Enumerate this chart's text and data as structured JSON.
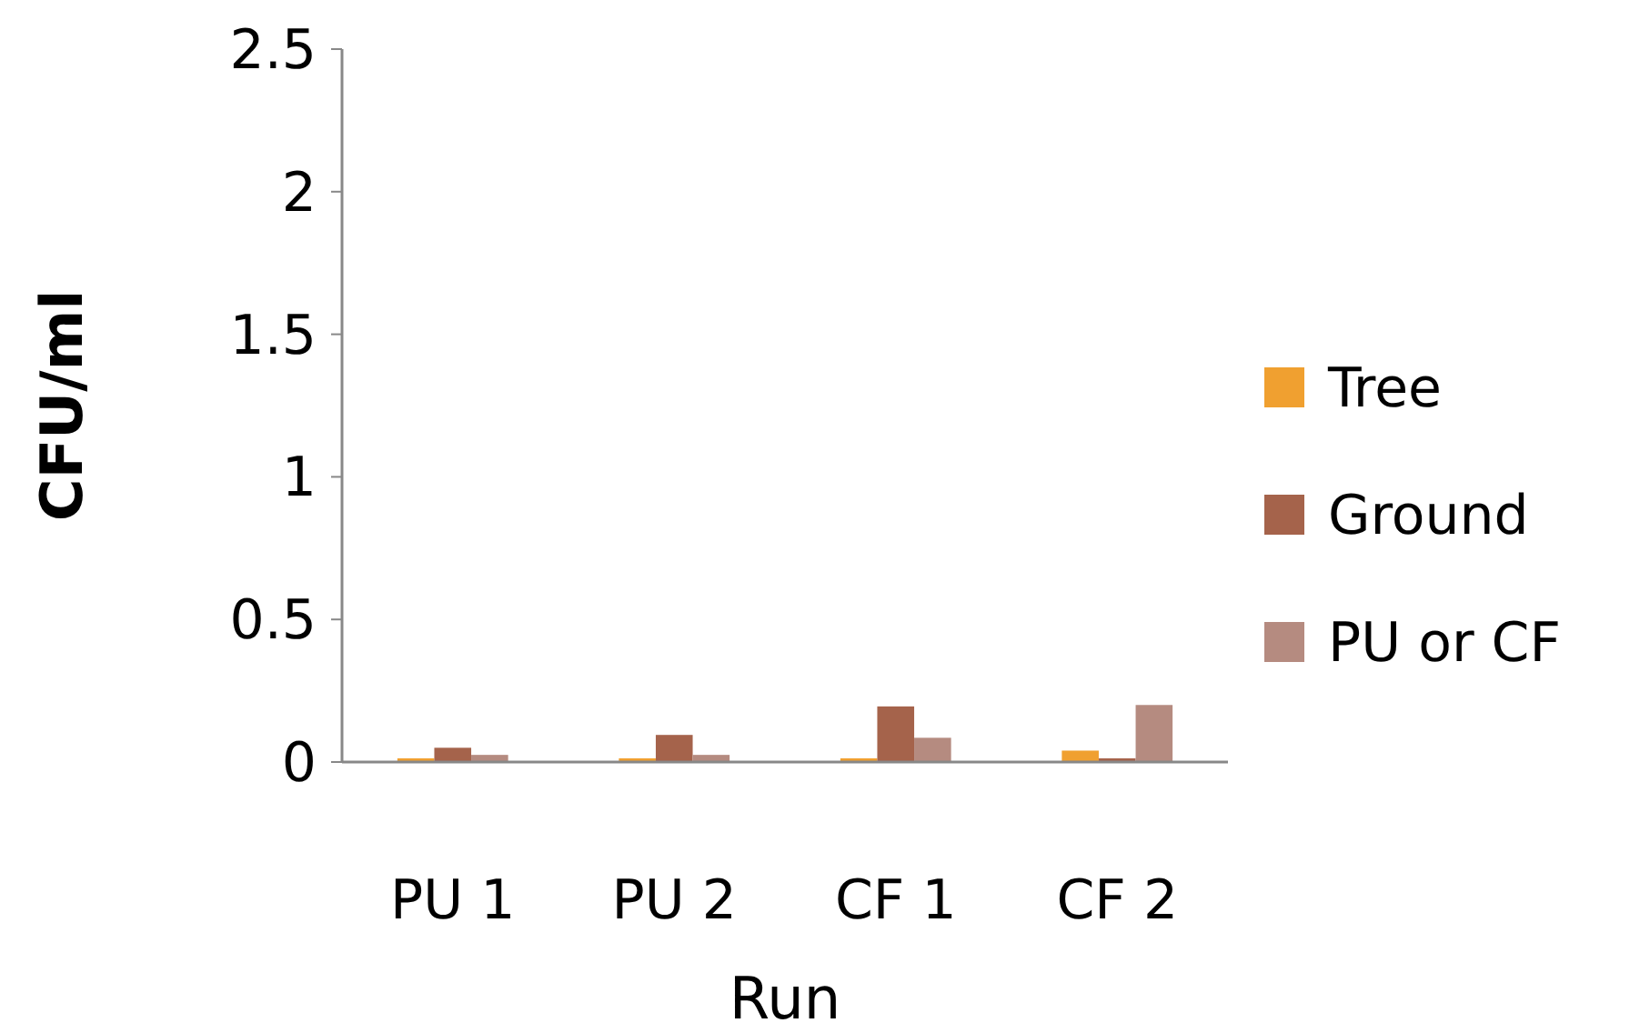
{
  "chart_data": {
    "type": "bar",
    "xlabel": "Run",
    "ylabel": "CFU/ml",
    "categories": [
      "PU 1",
      "PU 2",
      "CF 1",
      "CF 2"
    ],
    "series": [
      {
        "name": "Tree",
        "color": "#f0a030",
        "values": [
          0.013,
          0.013,
          0.013,
          0.04
        ]
      },
      {
        "name": "Ground",
        "color": "#a5634b",
        "values": [
          0.05,
          0.095,
          0.195,
          0.013
        ]
      },
      {
        "name": "PU or CF",
        "color": "#b58b80",
        "values": [
          0.025,
          0.025,
          0.085,
          0.2
        ]
      }
    ],
    "ylim": [
      0,
      2.5
    ],
    "yticks": [
      0,
      0.5,
      1,
      1.5,
      2,
      2.5
    ],
    "grid": false,
    "legend": "right"
  }
}
